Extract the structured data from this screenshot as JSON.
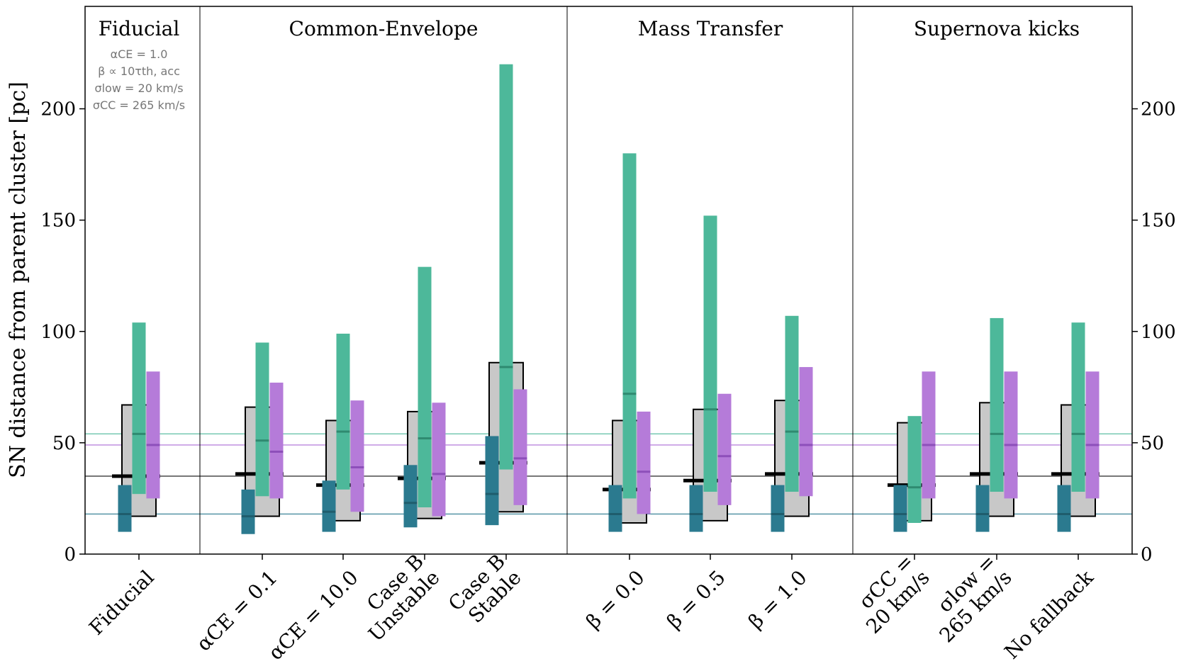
{
  "chart_data": {
    "type": "box",
    "ylabel": "SN distance from parent cluster [pc]",
    "ylim": [
      0,
      246
    ],
    "y_ticks": [
      0,
      50,
      100,
      150,
      200
    ],
    "groups": [
      {
        "title": "Fiducial",
        "annotation": [
          "αCE = 1.0",
          "β ∝ 10τth, acc",
          "σlow = 20 km/s",
          "σCC = 265 km/s"
        ]
      },
      {
        "title": "Common-Envelope"
      },
      {
        "title": "Mass Transfer"
      },
      {
        "title": "Supernova kicks"
      }
    ],
    "categories": [
      {
        "label": [
          "Fiducial"
        ],
        "group": 0
      },
      {
        "label": [
          "αCE = 0.1"
        ],
        "group": 1
      },
      {
        "label": [
          "αCE = 10.0"
        ],
        "group": 1
      },
      {
        "label": [
          "Case B",
          "Unstable"
        ],
        "group": 1
      },
      {
        "label": [
          "Case B",
          "Stable"
        ],
        "group": 1
      },
      {
        "label": [
          "β = 0.0"
        ],
        "group": 2
      },
      {
        "label": [
          "β = 0.5"
        ],
        "group": 2
      },
      {
        "label": [
          "β = 1.0"
        ],
        "group": 2
      },
      {
        "label": [
          "σCC =",
          "20 km/s"
        ],
        "group": 3
      },
      {
        "label": [
          "σlow =",
          "265 km/s"
        ],
        "group": 3
      },
      {
        "label": [
          "No fallback"
        ],
        "group": 3
      }
    ],
    "series": [
      {
        "color": "#c8c8c8",
        "edge": "#000000",
        "low": [
          17,
          17,
          15,
          16,
          19,
          14,
          15,
          17,
          15,
          17,
          17
        ],
        "high": [
          67,
          66,
          60,
          64,
          86,
          60,
          65,
          69,
          59,
          68,
          67
        ],
        "median": [
          35,
          36,
          31,
          34,
          41,
          29,
          33,
          36,
          31,
          36,
          36
        ]
      },
      {
        "color": "#2b7a8f",
        "low": [
          10,
          9,
          10,
          12,
          13,
          10,
          10,
          10,
          10,
          10,
          10
        ],
        "high": [
          31,
          29,
          33,
          40,
          53,
          31,
          31,
          31,
          31,
          31,
          31
        ],
        "median": [
          18,
          17,
          19,
          23,
          27,
          18,
          18,
          18,
          18,
          18,
          18
        ]
      },
      {
        "color": "#4db89a",
        "low": [
          27,
          26,
          29,
          21,
          38,
          25,
          28,
          28,
          14,
          28,
          28
        ],
        "high": [
          104,
          95,
          99,
          129,
          220,
          180,
          152,
          107,
          62,
          106,
          104
        ],
        "median": [
          54,
          51,
          55,
          52,
          84,
          72,
          65,
          55,
          30,
          54,
          54
        ]
      },
      {
        "color": "#b57bd9",
        "low": [
          25,
          25,
          19,
          17,
          22,
          18,
          22,
          26,
          25,
          25,
          25
        ],
        "high": [
          82,
          77,
          69,
          68,
          74,
          64,
          72,
          84,
          82,
          82,
          82
        ],
        "median": [
          49,
          46,
          39,
          36,
          43,
          37,
          44,
          49,
          49,
          49,
          49
        ]
      }
    ],
    "reference_lines": [
      {
        "y": 54,
        "color": "#4db89a"
      },
      {
        "y": 49,
        "color": "#b57bd9"
      },
      {
        "y": 35,
        "color": "#777777"
      },
      {
        "y": 18,
        "color": "#2b7a8f"
      }
    ],
    "grid": false
  }
}
